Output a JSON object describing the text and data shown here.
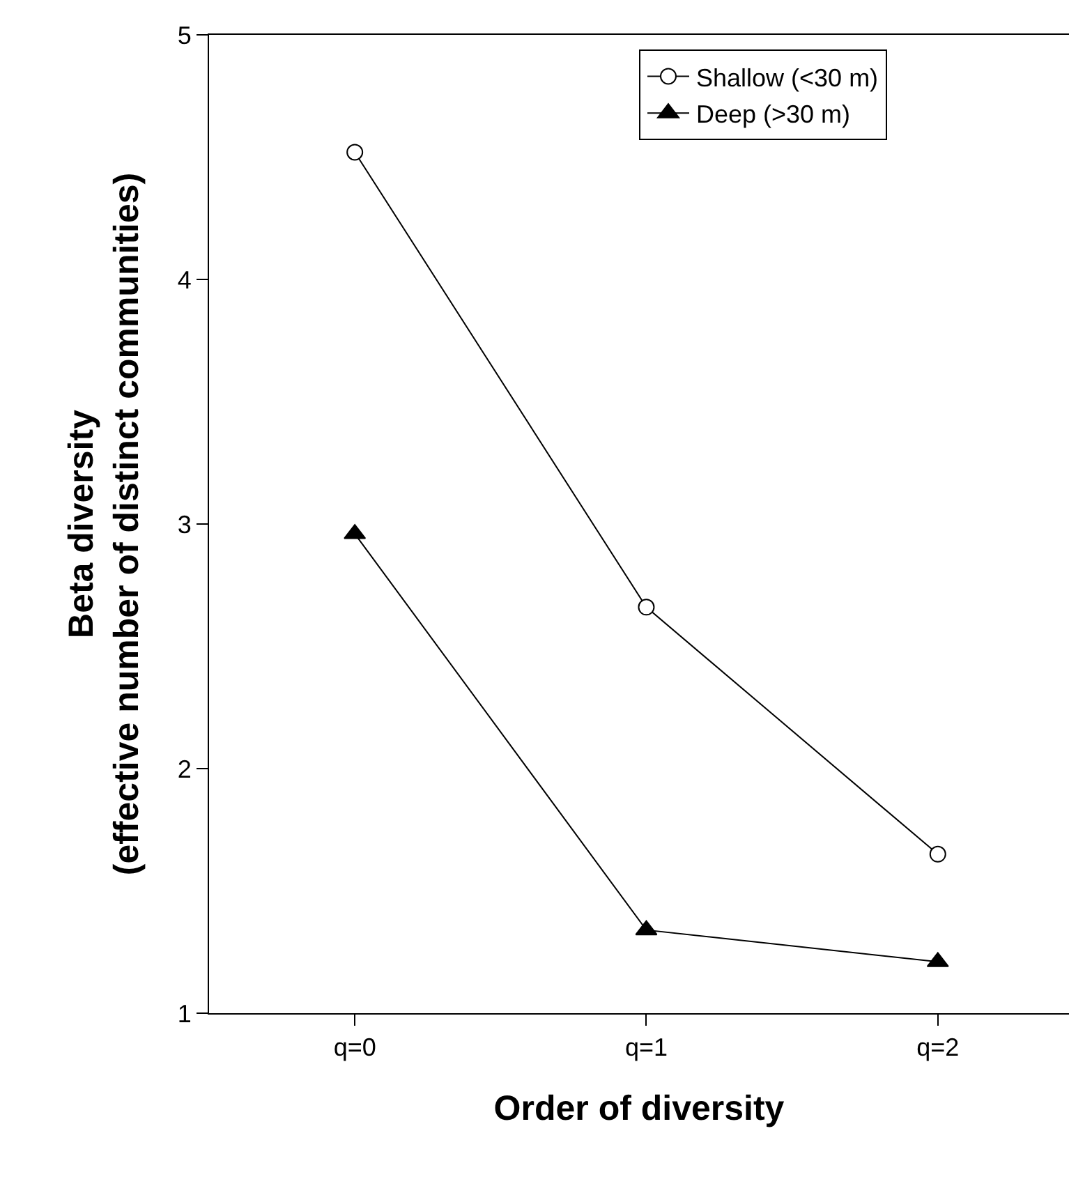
{
  "chart_data": {
    "type": "line",
    "xlabel": "Order of diversity",
    "ylabel": "Beta diversity\n(effective number of distinct communities)",
    "categories": [
      "q=0",
      "q=1",
      "q=2"
    ],
    "series": [
      {
        "name": "Shallow (<30 m)",
        "color": "#000000",
        "marker": "circle",
        "values": [
          4.52,
          2.66,
          1.65
        ]
      },
      {
        "name": "Deep (>30 m)",
        "color": "#000000",
        "marker": "triangle",
        "values": [
          2.96,
          1.34,
          1.21
        ]
      }
    ],
    "ylim": [
      1,
      5
    ],
    "yticks": [
      1,
      2,
      3,
      4,
      5
    ],
    "grid": false,
    "legend": "top right",
    "line_style": "solid"
  }
}
